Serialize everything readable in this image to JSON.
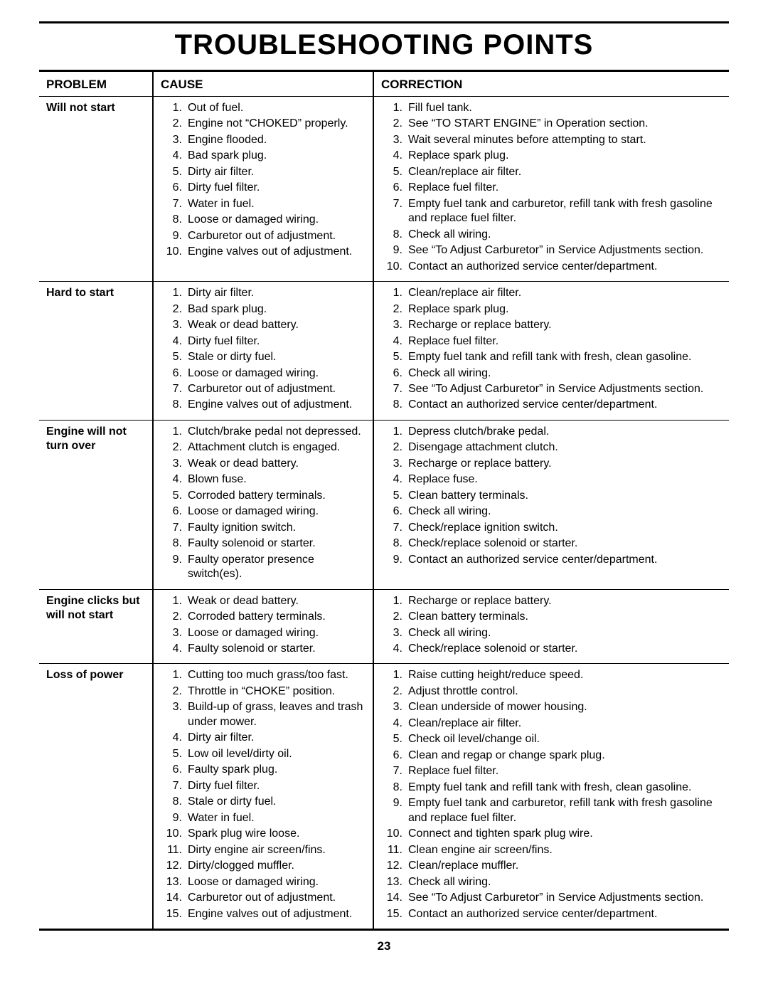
{
  "title": "TROUBLESHOOTING POINTS",
  "page_number": "23",
  "columns": {
    "problem": "PROBLEM",
    "cause": "CAUSE",
    "correction": "CORRECTION"
  },
  "rows": [
    {
      "problem": "Will not start",
      "cause": [
        "Out of fuel.",
        "Engine not “CHOKED” properly.",
        "Engine flooded.",
        "Bad spark plug.",
        "Dirty air filter.",
        "Dirty fuel filter.",
        "Water in fuel.",
        "Loose or damaged wiring.",
        "Carburetor out of adjustment.",
        "Engine valves out of adjustment."
      ],
      "correction": [
        "Fill fuel tank.",
        "See “TO START ENGINE” in Operation section.",
        "Wait several minutes before attempting to start.",
        "Replace spark plug.",
        "Clean/replace air filter.",
        "Replace fuel filter.",
        "Empty fuel tank and carburetor, refill tank with fresh gasoline and replace fuel filter.",
        "Check all wiring.",
        "See “To Adjust Carburetor” in Service Adjustments section.",
        "Contact an authorized service center/department."
      ]
    },
    {
      "problem": "Hard to start",
      "cause": [
        "Dirty air filter.",
        "Bad spark plug.",
        "Weak or dead battery.",
        "Dirty fuel filter.",
        "Stale or dirty fuel.",
        "Loose or damaged wiring.",
        "Carburetor out of adjustment.",
        "Engine valves out of adjustment."
      ],
      "correction": [
        "Clean/replace air filter.",
        "Replace spark plug.",
        "Recharge or replace battery.",
        "Replace fuel filter.",
        "Empty fuel tank and refill tank with fresh, clean gasoline.",
        "Check all wiring.",
        "See “To Adjust Carburetor” in Service Adjustments section.",
        "Contact an authorized service center/department."
      ]
    },
    {
      "problem": "Engine will not turn over",
      "cause": [
        "Clutch/brake pedal not depressed.",
        "Attachment clutch is engaged.",
        "Weak or dead battery.",
        "Blown fuse.",
        "Corroded battery terminals.",
        "Loose or damaged wiring.",
        "Faulty ignition switch.",
        "Faulty solenoid or starter.",
        "Faulty operator presence switch(es)."
      ],
      "correction": [
        "Depress clutch/brake pedal.",
        "Disengage attachment clutch.",
        "Recharge or replace battery.",
        "Replace fuse.",
        "Clean battery terminals.",
        "Check all wiring.",
        "Check/replace ignition switch.",
        "Check/replace solenoid or starter.",
        "Contact an authorized service center/department."
      ]
    },
    {
      "problem": "Engine clicks but will not start",
      "cause": [
        "Weak or dead battery.",
        "Corroded battery terminals.",
        "Loose or damaged wiring.",
        "Faulty solenoid or starter."
      ],
      "correction": [
        "Recharge or replace battery.",
        "Clean battery terminals.",
        "Check all wiring.",
        "Check/replace solenoid or starter."
      ]
    },
    {
      "problem": "Loss of power",
      "cause": [
        "Cutting too much grass/too fast.",
        "Throttle in “CHOKE” position.",
        "Build-up of grass, leaves and trash under mower.",
        "Dirty air filter.",
        "Low oil level/dirty oil.",
        "Faulty spark plug.",
        "Dirty fuel filter.",
        "Stale or dirty fuel.",
        "Water in fuel.",
        "Spark plug wire loose.",
        "Dirty engine air screen/fins.",
        "Dirty/clogged muffler.",
        "Loose or damaged wiring.",
        "Carburetor out of adjustment.",
        "Engine valves out of adjustment."
      ],
      "correction": [
        "Raise cutting height/reduce speed.",
        "Adjust throttle control.",
        "Clean underside of mower housing.",
        "Clean/replace air filter.",
        "Check oil level/change oil.",
        "Clean and regap or change spark plug.",
        "Replace fuel filter.",
        "Empty fuel tank and refill tank with fresh, clean gasoline.",
        "Empty fuel tank and carburetor, refill tank with fresh gasoline and replace fuel filter.",
        "Connect and tighten spark plug wire.",
        "Clean engine air screen/fins.",
        "Clean/replace muffler.",
        "Check all wiring.",
        "See “To Adjust Carburetor” in Service Adjustments section.",
        "Contact an authorized service center/department."
      ]
    }
  ]
}
